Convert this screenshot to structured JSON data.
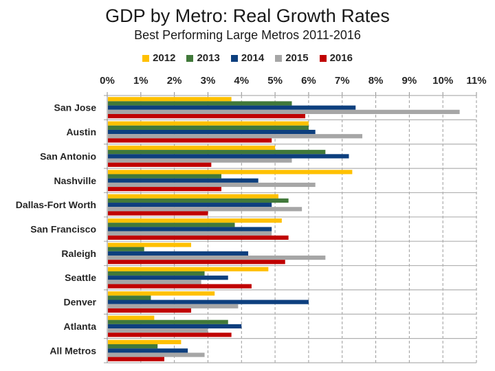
{
  "chart_data": {
    "type": "bar",
    "orientation": "horizontal",
    "title": "GDP by Metro: Real Growth Rates",
    "subtitle": "Best Performing Large Metros 2011-2016",
    "xlabel": "",
    "ylabel": "",
    "xlim": [
      0,
      11
    ],
    "x_ticks": [
      "0%",
      "1%",
      "2%",
      "3%",
      "4%",
      "5%",
      "6%",
      "7%",
      "8%",
      "9%",
      "10%",
      "11%"
    ],
    "x_axis_position": "top",
    "grid": "vertical dashed",
    "legend_position": "top",
    "categories": [
      "San Jose",
      "Austin",
      "San Antonio",
      "Nashville",
      "Dallas-Fort Worth",
      "San Francisco",
      "Raleigh",
      "Seattle",
      "Denver",
      "Atlanta",
      "All Metros"
    ],
    "series": [
      {
        "name": "2012",
        "color": "#FFC000",
        "values": [
          3.7,
          6.0,
          5.0,
          7.3,
          5.1,
          5.2,
          2.5,
          4.8,
          3.2,
          1.4,
          2.2
        ]
      },
      {
        "name": "2013",
        "color": "#41793A",
        "values": [
          5.5,
          6.0,
          6.5,
          3.4,
          5.4,
          3.8,
          1.1,
          2.9,
          1.3,
          3.6,
          1.5
        ]
      },
      {
        "name": "2014",
        "color": "#0D3F7E",
        "values": [
          7.4,
          6.2,
          7.2,
          4.5,
          4.9,
          4.9,
          4.2,
          3.6,
          6.0,
          4.0,
          2.4
        ]
      },
      {
        "name": "2015",
        "color": "#A6A6A6",
        "values": [
          10.5,
          7.6,
          5.5,
          6.2,
          5.8,
          4.9,
          6.5,
          2.8,
          3.9,
          3.0,
          2.9
        ]
      },
      {
        "name": "2016",
        "color": "#C00000",
        "values": [
          5.9,
          4.9,
          3.1,
          3.4,
          3.0,
          5.4,
          5.3,
          4.3,
          2.5,
          3.7,
          1.7
        ]
      }
    ]
  }
}
